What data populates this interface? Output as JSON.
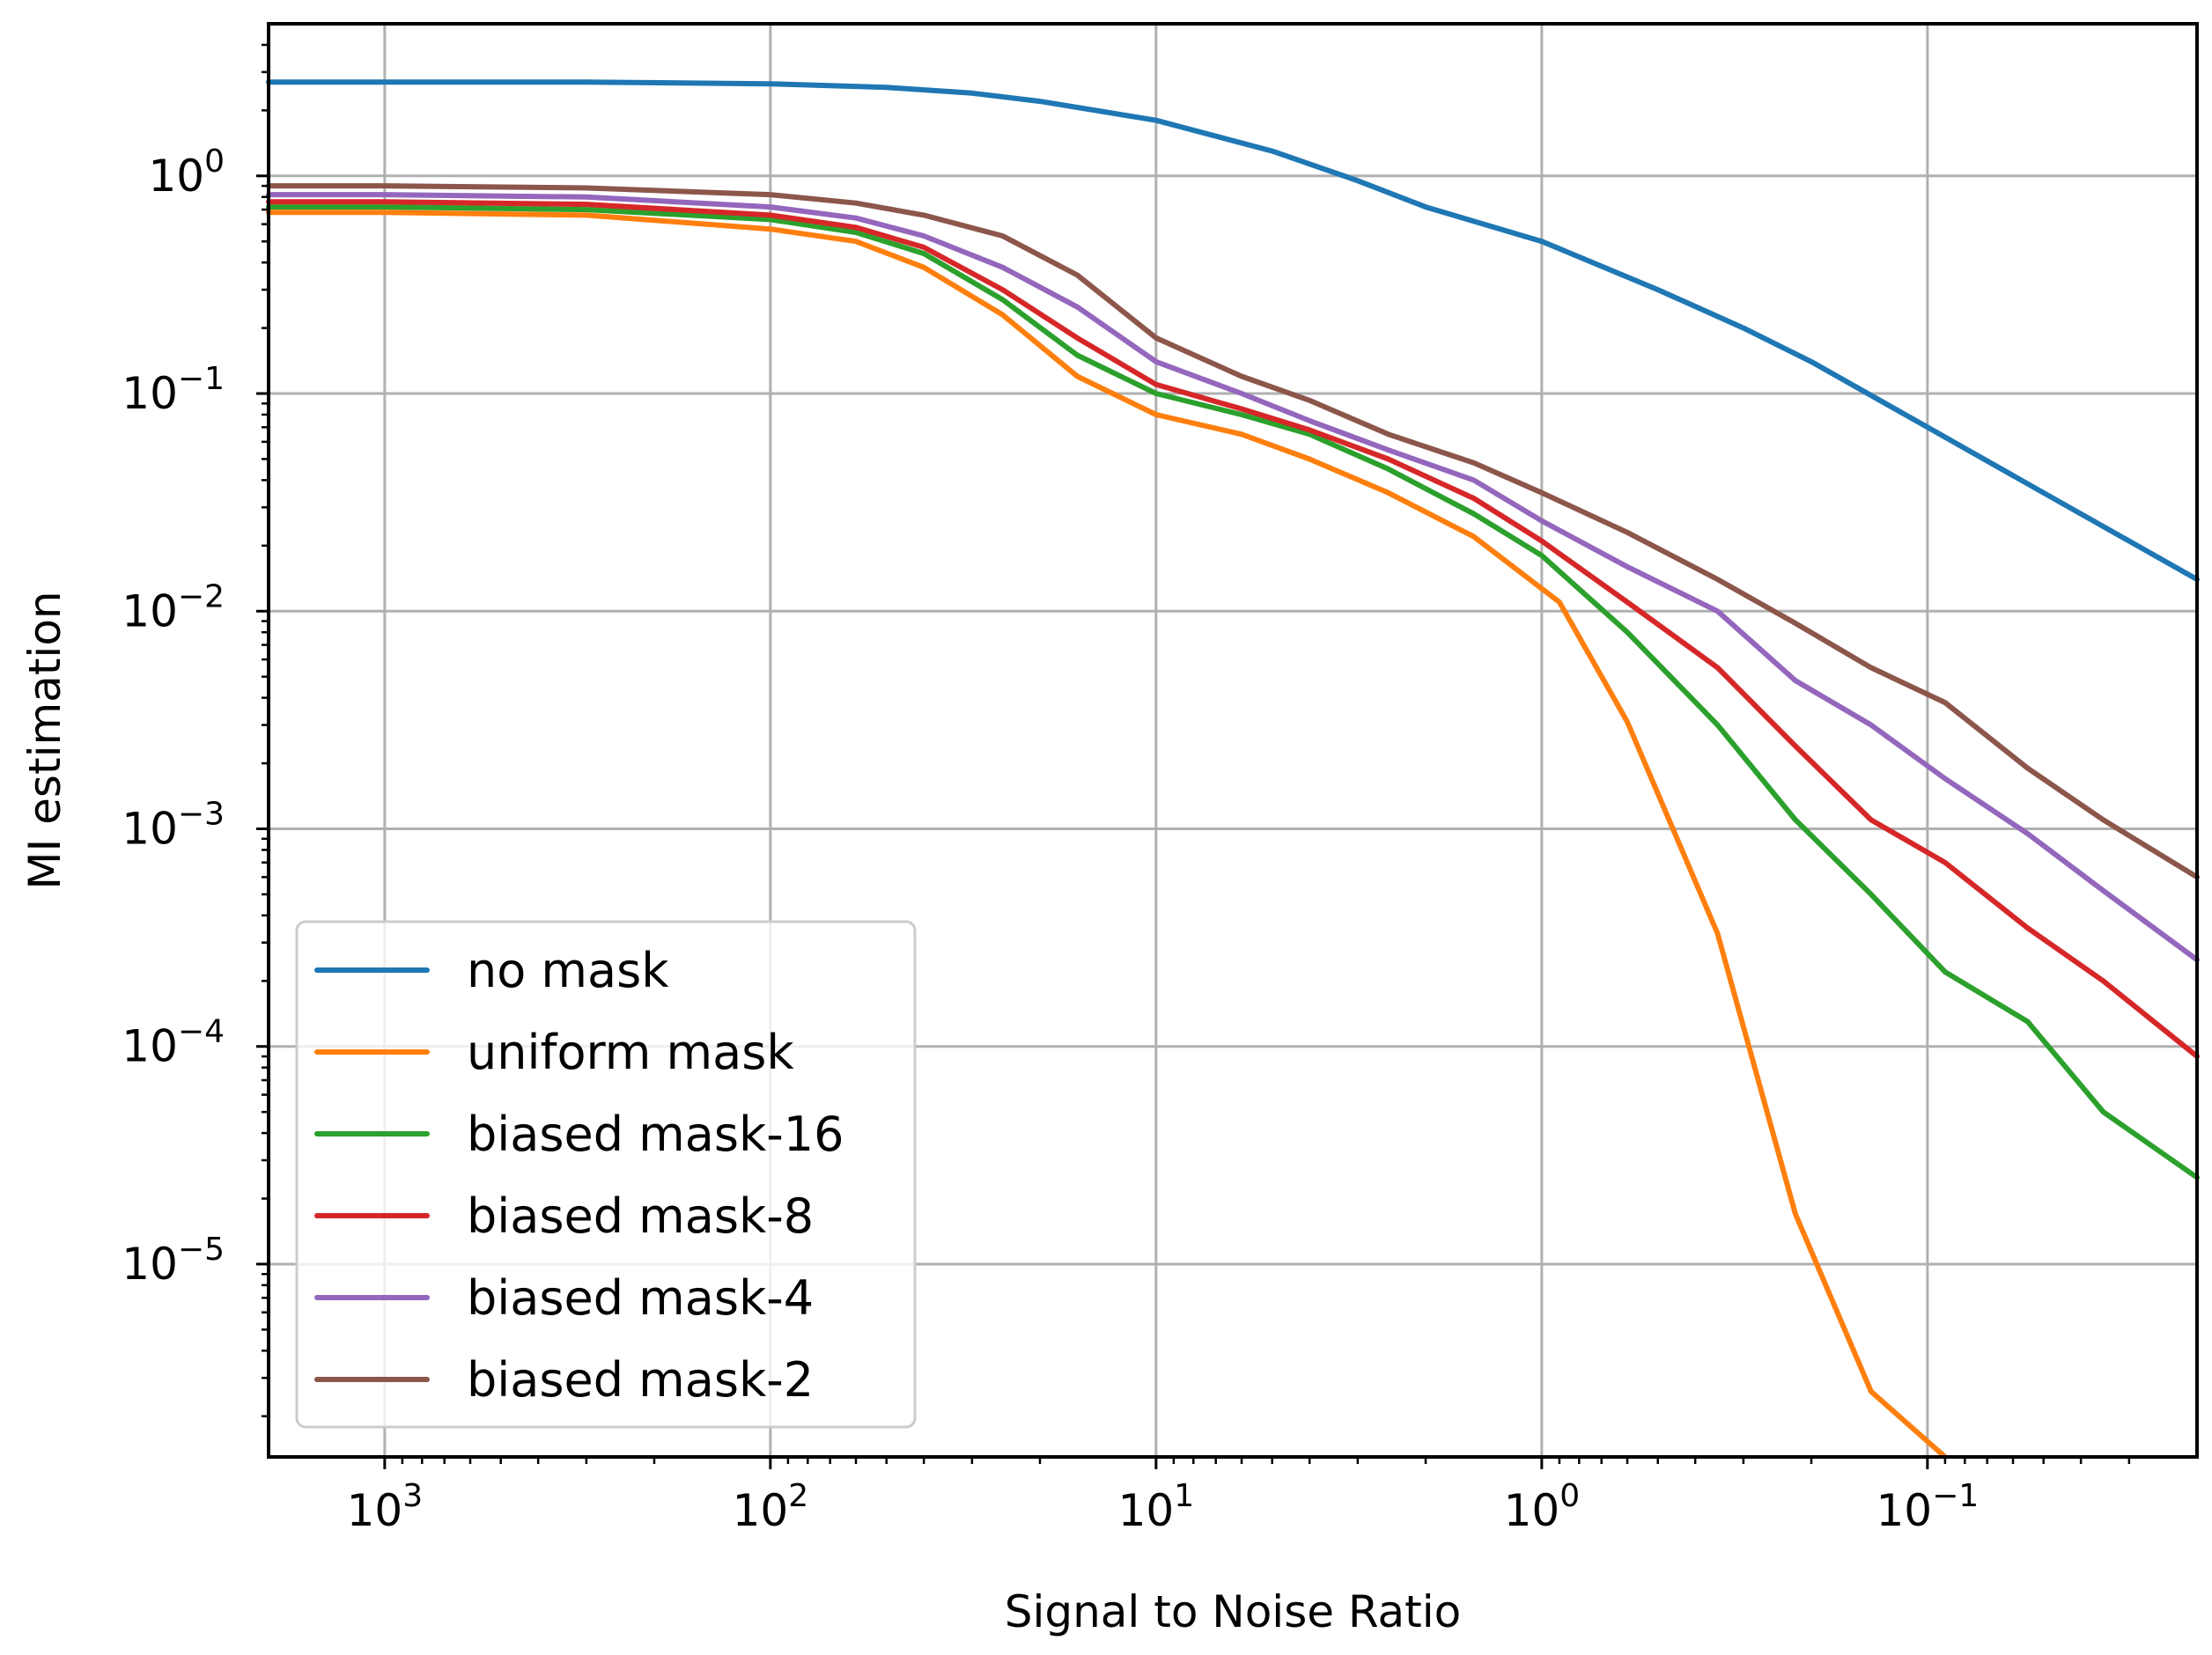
{
  "chart_data": {
    "type": "line",
    "xlabel": "Signal to Noise Ratio",
    "ylabel": "MI estimation",
    "xscale": "log",
    "yscale": "log",
    "x_inverted": true,
    "xlim": [
      2000,
      0.02
    ],
    "ylim": [
      1.3e-06,
      5
    ],
    "grid": true,
    "legend_position": "lower-left",
    "xticks": [
      {
        "value": 1000,
        "base": "10",
        "exp": "3"
      },
      {
        "value": 100,
        "base": "10",
        "exp": "2"
      },
      {
        "value": 10,
        "base": "10",
        "exp": "1"
      },
      {
        "value": 1,
        "base": "10",
        "exp": "0"
      },
      {
        "value": 0.1,
        "base": "10",
        "exp": "−1"
      }
    ],
    "yticks": [
      {
        "value": 1,
        "base": "10",
        "exp": "0"
      },
      {
        "value": 0.1,
        "base": "10",
        "exp": "−1"
      },
      {
        "value": 0.01,
        "base": "10",
        "exp": "−2"
      },
      {
        "value": 0.001,
        "base": "10",
        "exp": "−3"
      },
      {
        "value": 0.0001,
        "base": "10",
        "exp": "−4"
      },
      {
        "value": 1e-05,
        "base": "10",
        "exp": "−5"
      }
    ],
    "series": [
      {
        "name": "no mask",
        "color": "#1f77b4",
        "x": [
          2000,
          1000,
          300,
          100,
          50,
          30,
          20,
          10,
          5,
          3,
          2,
          1,
          0.5,
          0.3,
          0.2,
          0.1,
          0.05,
          0.02
        ],
        "y": [
          2.7,
          2.7,
          2.7,
          2.65,
          2.55,
          2.4,
          2.2,
          1.8,
          1.3,
          0.95,
          0.72,
          0.5,
          0.3,
          0.2,
          0.14,
          0.07,
          0.035,
          0.014
        ]
      },
      {
        "name": "uniform mask",
        "color": "#ff7f0e",
        "x": [
          2000,
          1000,
          300,
          100,
          60,
          40,
          25,
          16,
          10,
          6,
          4,
          2.5,
          1.5,
          0.9,
          0.6,
          0.35,
          0.22,
          0.14,
          0.09
        ],
        "y": [
          0.68,
          0.68,
          0.66,
          0.57,
          0.5,
          0.38,
          0.23,
          0.12,
          0.08,
          0.065,
          0.05,
          0.035,
          0.022,
          0.011,
          0.0031,
          0.00033,
          1.7e-05,
          2.6e-06,
          1.3e-06
        ]
      },
      {
        "name": "biased mask-16",
        "color": "#2ca02c",
        "x": [
          2000,
          1000,
          300,
          100,
          60,
          40,
          25,
          16,
          10,
          6,
          4,
          2.5,
          1.5,
          1,
          0.6,
          0.35,
          0.22,
          0.14,
          0.09,
          0.055,
          0.035,
          0.02
        ],
        "y": [
          0.72,
          0.72,
          0.7,
          0.63,
          0.55,
          0.44,
          0.27,
          0.15,
          0.1,
          0.08,
          0.065,
          0.045,
          0.028,
          0.018,
          0.008,
          0.003,
          0.0011,
          0.0005,
          0.00022,
          0.00013,
          5e-05,
          2.5e-05
        ]
      },
      {
        "name": "biased mask-8",
        "color": "#d62728",
        "x": [
          2000,
          1000,
          300,
          100,
          60,
          40,
          25,
          16,
          10,
          6,
          4,
          2.5,
          1.5,
          1,
          0.6,
          0.35,
          0.22,
          0.14,
          0.09,
          0.055,
          0.035,
          0.02
        ],
        "y": [
          0.76,
          0.76,
          0.74,
          0.66,
          0.58,
          0.47,
          0.3,
          0.18,
          0.11,
          0.085,
          0.068,
          0.05,
          0.033,
          0.021,
          0.011,
          0.0055,
          0.0024,
          0.0011,
          0.0007,
          0.00035,
          0.0002,
          9e-05
        ]
      },
      {
        "name": "biased mask-4",
        "color": "#9467bd",
        "x": [
          2000,
          1000,
          300,
          100,
          60,
          40,
          25,
          16,
          10,
          6,
          4,
          2.5,
          1.5,
          1,
          0.6,
          0.35,
          0.22,
          0.14,
          0.09,
          0.055,
          0.035,
          0.02
        ],
        "y": [
          0.82,
          0.82,
          0.8,
          0.72,
          0.64,
          0.53,
          0.38,
          0.25,
          0.14,
          0.1,
          0.075,
          0.055,
          0.04,
          0.026,
          0.016,
          0.01,
          0.0048,
          0.003,
          0.0017,
          0.00095,
          0.00052,
          0.00025
        ]
      },
      {
        "name": "biased mask-2",
        "color": "#8c564b",
        "x": [
          2000,
          1000,
          300,
          100,
          60,
          40,
          25,
          16,
          10,
          6,
          4,
          2.5,
          1.5,
          1,
          0.6,
          0.35,
          0.22,
          0.14,
          0.09,
          0.055,
          0.035,
          0.02
        ],
        "y": [
          0.9,
          0.9,
          0.88,
          0.82,
          0.75,
          0.66,
          0.53,
          0.35,
          0.18,
          0.12,
          0.093,
          0.065,
          0.048,
          0.035,
          0.023,
          0.014,
          0.0088,
          0.0055,
          0.0038,
          0.0019,
          0.0011,
          0.0006
        ]
      }
    ]
  }
}
